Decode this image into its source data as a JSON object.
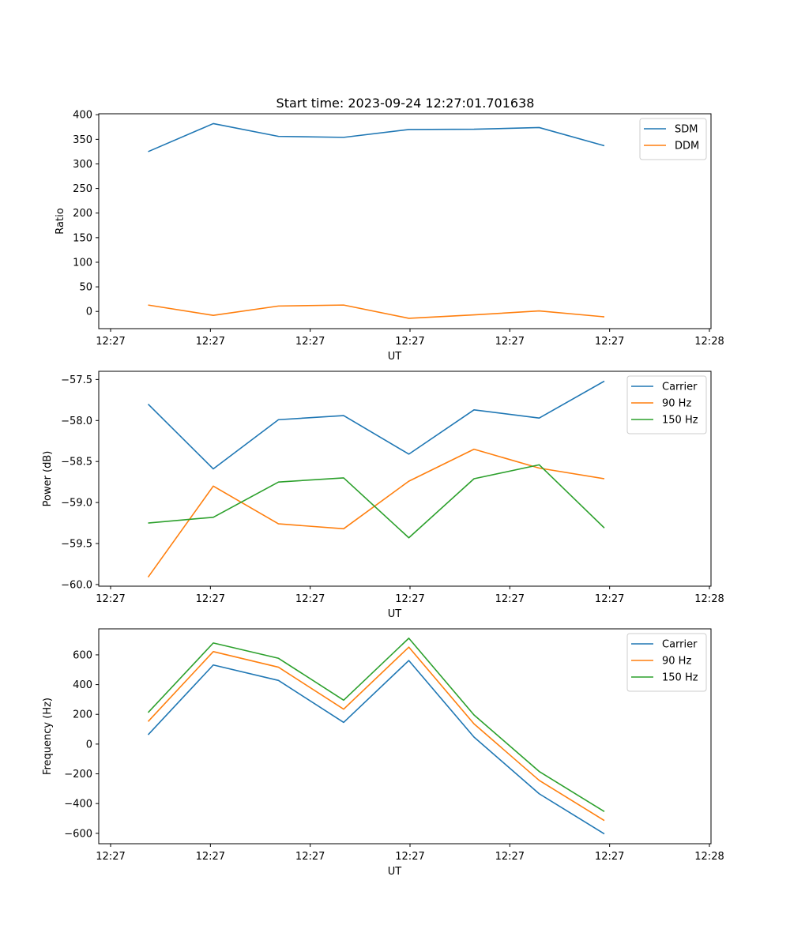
{
  "figure": {
    "title": "Start time: 2023-09-24 12:27:01.701638"
  },
  "chart_data": [
    {
      "type": "line",
      "xlabel": "UT",
      "ylabel": "Ratio",
      "x_ticks": [
        "12:27",
        "12:27",
        "12:27",
        "12:27",
        "12:27",
        "12:27",
        "12:28"
      ],
      "x_range": [
        -0.5,
        5.7
      ],
      "x": [
        0,
        0.66,
        1.32,
        1.98,
        2.64,
        3.3,
        3.96,
        4.62
      ],
      "ylim": [
        -35,
        402
      ],
      "y_ticks": [
        0,
        50,
        100,
        150,
        200,
        250,
        300,
        350,
        400
      ],
      "legend_loc": "upper right",
      "series": [
        {
          "name": "SDM",
          "color": "#1f77b4",
          "values": [
            325,
            382,
            356,
            354,
            370,
            370.5,
            374,
            337
          ]
        },
        {
          "name": "DDM",
          "color": "#ff7f0e",
          "values": [
            13,
            -8,
            11,
            13,
            -14,
            -7,
            1,
            -11
          ]
        }
      ]
    },
    {
      "type": "line",
      "xlabel": "UT",
      "ylabel": "Power (dB)",
      "x_ticks": [
        "12:27",
        "12:27",
        "12:27",
        "12:27",
        "12:27",
        "12:27",
        "12:28"
      ],
      "x_range": [
        -0.5,
        5.7
      ],
      "x": [
        0,
        0.66,
        1.32,
        1.98,
        2.64,
        3.3,
        3.96,
        4.62
      ],
      "ylim": [
        -60.02,
        -57.4
      ],
      "y_ticks": [
        -60.0,
        -59.5,
        -59.0,
        -58.5,
        -58.0,
        -57.5
      ],
      "y_tick_labels": [
        "−60.0",
        "−59.5",
        "−59.0",
        "−58.5",
        "−58.0",
        "−57.5"
      ],
      "legend_loc": "upper right",
      "series": [
        {
          "name": "Carrier",
          "color": "#1f77b4",
          "values": [
            -57.8,
            -58.59,
            -57.99,
            -57.94,
            -58.41,
            -57.87,
            -57.97,
            -57.52
          ]
        },
        {
          "name": "90 Hz",
          "color": "#ff7f0e",
          "values": [
            -59.91,
            -58.8,
            -59.26,
            -59.32,
            -58.74,
            -58.35,
            -58.58,
            -58.71
          ]
        },
        {
          "name": "150 Hz",
          "color": "#2ca02c",
          "values": [
            -59.25,
            -59.18,
            -58.75,
            -58.7,
            -59.43,
            -58.71,
            -58.54,
            -59.31
          ]
        }
      ]
    },
    {
      "type": "line",
      "xlabel": "UT",
      "ylabel": "Frequency (Hz)",
      "x_ticks": [
        "12:27",
        "12:27",
        "12:27",
        "12:27",
        "12:27",
        "12:27",
        "12:28"
      ],
      "x_range": [
        -0.5,
        5.7
      ],
      "x": [
        0,
        0.66,
        1.32,
        1.98,
        2.64,
        3.3,
        3.96,
        4.62
      ],
      "ylim": [
        -670,
        775
      ],
      "y_ticks": [
        -600,
        -400,
        -200,
        0,
        200,
        400,
        600
      ],
      "y_tick_labels": [
        "−600",
        "−400",
        "−200",
        "0",
        "200",
        "400",
        "600"
      ],
      "legend_loc": "upper right",
      "series": [
        {
          "name": "Carrier",
          "color": "#1f77b4",
          "values": [
            63,
            532,
            428,
            146,
            562,
            47,
            -334,
            -604
          ]
        },
        {
          "name": "90 Hz",
          "color": "#ff7f0e",
          "values": [
            152,
            622,
            517,
            235,
            652,
            136,
            -244,
            -514
          ]
        },
        {
          "name": "150 Hz",
          "color": "#2ca02c",
          "values": [
            212,
            680,
            577,
            295,
            712,
            196,
            -184,
            -454
          ]
        }
      ]
    }
  ]
}
